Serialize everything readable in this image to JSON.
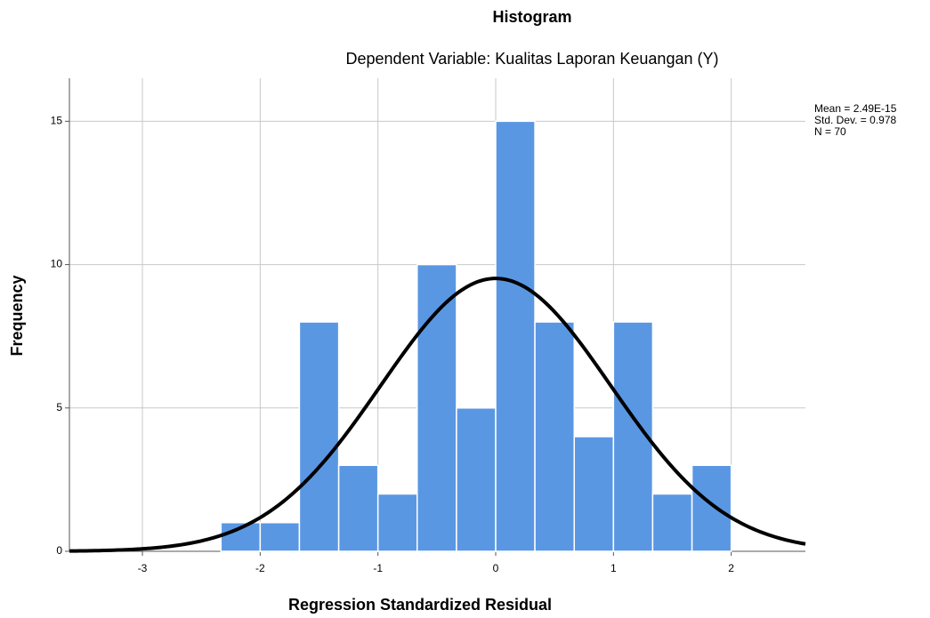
{
  "chart_data": {
    "type": "histogram",
    "title": "Histogram",
    "subtitle": "Dependent Variable: Kualitas Laporan Keuangan (Y)",
    "x_label": "Regression Standardized Residual",
    "y_label": "Frequency",
    "bins": [
      -2.333,
      -2.0,
      -1.667,
      -1.333,
      -1.0,
      -0.667,
      -0.333,
      0.0,
      0.333,
      0.667,
      1.0,
      1.333,
      1.667,
      2.0
    ],
    "values": [
      1,
      1,
      8,
      3,
      2,
      10,
      5,
      15,
      8,
      4,
      8,
      2,
      3
    ],
    "color": "#5a97e3",
    "curve_color": "#000000",
    "xlim": [
      -3.62,
      2.63
    ],
    "ylim": [
      0,
      16.5
    ],
    "xticks": [
      -3,
      -2,
      -1,
      0,
      1,
      2
    ],
    "yticks": [
      0,
      5,
      10,
      15
    ],
    "grid": true,
    "stats": {
      "mean": {
        "value": 2.49e-15,
        "label": "Mean = 2.49E-15"
      },
      "sd": {
        "value": 0.978,
        "label": "Std. Dev. = 0.978"
      },
      "n": {
        "value": 70,
        "label": "N = 70"
      }
    }
  }
}
